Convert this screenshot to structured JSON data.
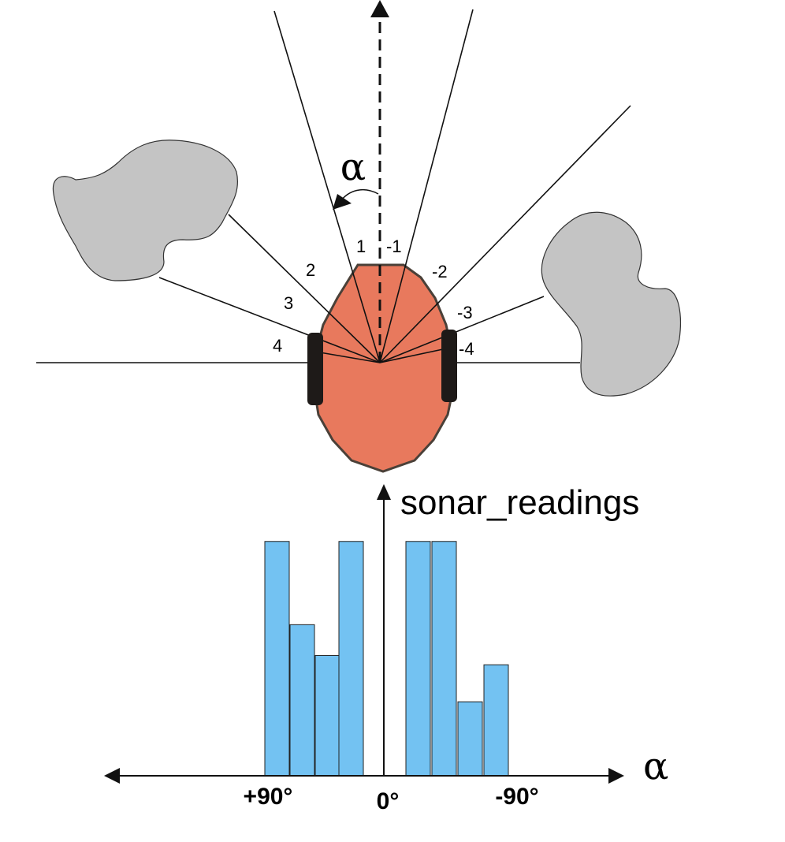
{
  "diagram": {
    "alpha_symbol": "α",
    "sensor_labels": [
      "1",
      "2",
      "3",
      "4",
      "-1",
      "-2",
      "-3",
      "-4"
    ],
    "colors": {
      "robot_body": "#e8795d",
      "robot_outline": "#4a4038",
      "wheels": "#1e1a18",
      "obstacles": "#c4c4c4",
      "bars": "#73c2f2",
      "bar_outline": "#222222"
    },
    "icons": {
      "axis_arrows": "arrowhead-triangle"
    }
  },
  "chart_data": {
    "type": "bar",
    "ylabel": "sonar_readings",
    "xlabel": "α",
    "x_tick_labels": [
      "+90°",
      "0°",
      "-90°"
    ],
    "categories": [
      "4",
      "3",
      "2",
      "1",
      "-1",
      "-2",
      "-3",
      "-4"
    ],
    "values": [
      7.6,
      4.9,
      3.9,
      7.6,
      7.6,
      7.6,
      2.4,
      3.6
    ],
    "ylim": [
      0,
      9
    ],
    "grid": false,
    "legend": "none"
  }
}
